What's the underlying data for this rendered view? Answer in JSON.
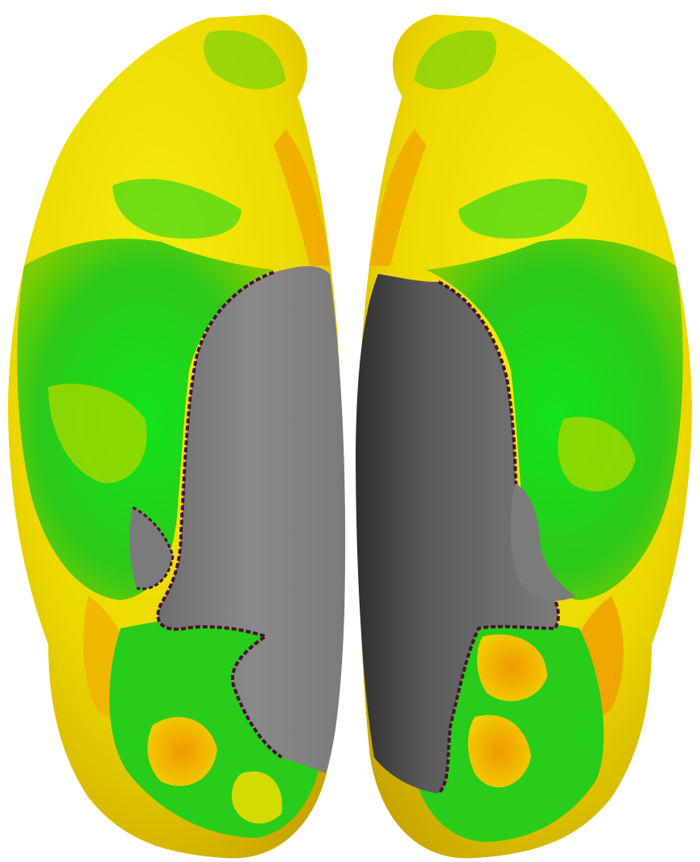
{
  "image": {
    "subject": "brain-surface-render-ventral-view",
    "hemispheres": [
      "left-hemisphere",
      "right-hemisphere"
    ],
    "colors": {
      "background": "#ffffff",
      "medial_wall": "#7a7a7a",
      "medial_wall_dark": "#3a3a3a",
      "surface_yellow": "#f2e600",
      "surface_orange": "#f0a000",
      "surface_green": "#1ed21e",
      "surface_lime": "#9ad400",
      "boundary": "#4a1030"
    }
  }
}
